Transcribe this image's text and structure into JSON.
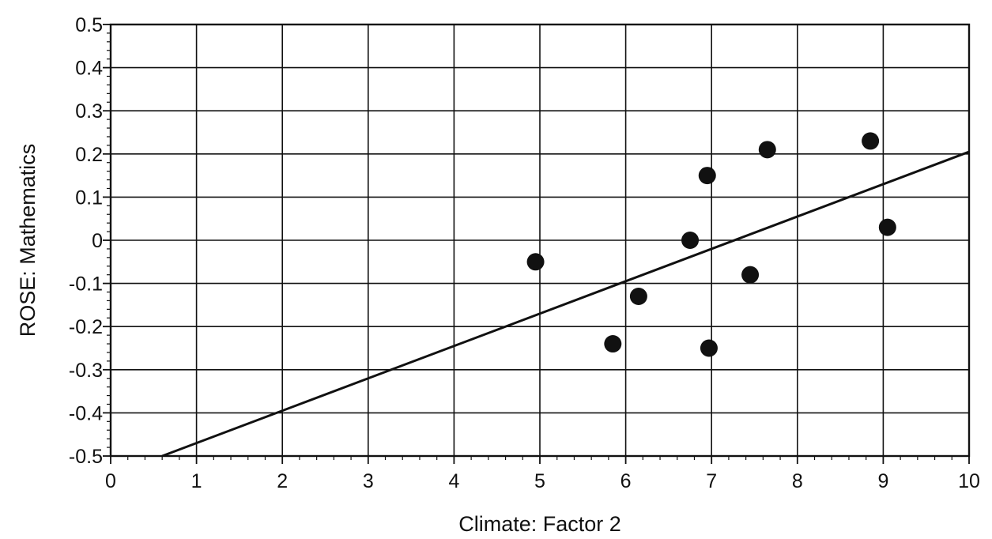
{
  "chart_data": {
    "type": "scatter",
    "title": "",
    "xlabel": "Climate: Factor 2",
    "ylabel": "ROSE: Mathematics",
    "xlim": [
      0,
      10
    ],
    "ylim": [
      -0.5,
      0.5
    ],
    "x_ticks": [
      0,
      1,
      2,
      3,
      4,
      5,
      6,
      7,
      8,
      9,
      10
    ],
    "x_tick_labels": [
      "0",
      "1",
      "2",
      "3",
      "4",
      "5",
      "6",
      "7",
      "8",
      "9",
      "10"
    ],
    "y_ticks": [
      0.5,
      0.4,
      0.3,
      0.2,
      0.1,
      0,
      -0.1,
      -0.2,
      -0.3,
      -0.4,
      -0.5
    ],
    "y_tick_labels": [
      "0.5",
      "0.4",
      "0.3",
      "0.2",
      "0.1",
      "0",
      "-0.1",
      "-0.2",
      "-0.3",
      "-0.4",
      "-0.5"
    ],
    "grid": true,
    "legend": "none",
    "series": [
      {
        "points": [
          {
            "x": 4.95,
            "y": -0.05
          },
          {
            "x": 5.85,
            "y": -0.24
          },
          {
            "x": 6.15,
            "y": -0.13
          },
          {
            "x": 6.75,
            "y": 0.0
          },
          {
            "x": 6.95,
            "y": 0.15
          },
          {
            "x": 6.97,
            "y": -0.25
          },
          {
            "x": 7.45,
            "y": -0.08
          },
          {
            "x": 7.65,
            "y": 0.21
          },
          {
            "x": 8.85,
            "y": 0.23
          },
          {
            "x": 9.05,
            "y": 0.03
          }
        ]
      }
    ],
    "trend_line": {
      "type": "linear",
      "points": [
        {
          "x": 0.6,
          "y": -0.5
        },
        {
          "x": 10,
          "y": 0.205
        }
      ]
    },
    "colors": {
      "marker": "#111111",
      "line": "#111111",
      "grid": "#111111"
    }
  }
}
